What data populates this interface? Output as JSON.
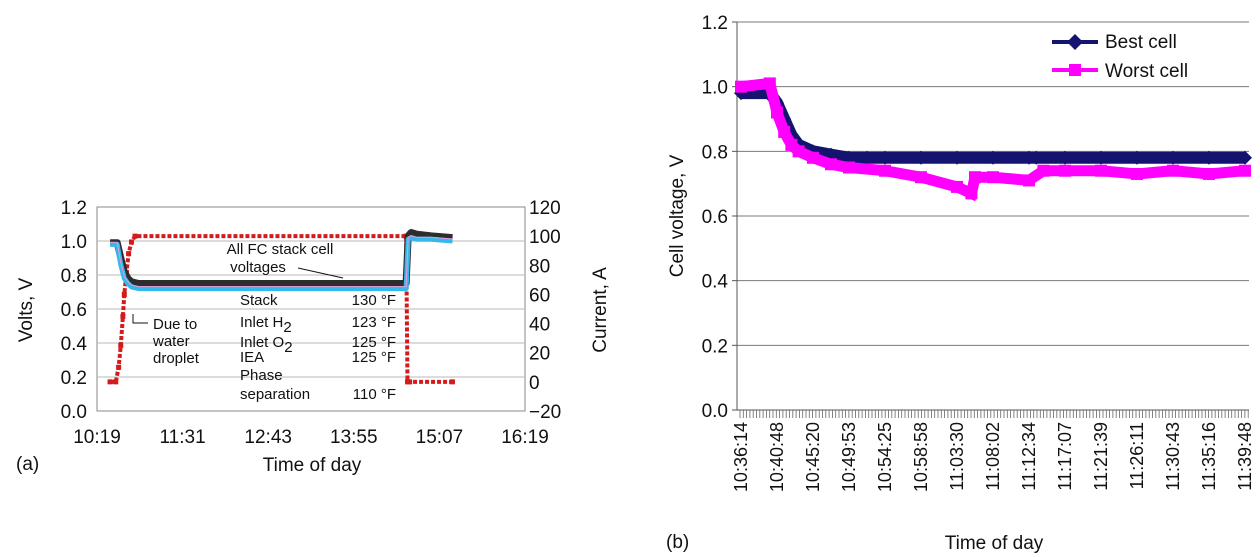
{
  "chart_data": [
    {
      "panel_label": "(a)",
      "type": "line",
      "xlabel": "Time of day",
      "ylabel": "Volts, V",
      "y2label": "Current, A",
      "xlim": [
        10.317,
        16.317
      ],
      "ylim": [
        0.0,
        1.2
      ],
      "y2lim": [
        -20,
        120
      ],
      "x_ticks": [
        "10:19",
        "11:31",
        "12:43",
        "13:55",
        "15:07",
        "16:19"
      ],
      "y_ticks": [
        "0.0",
        "0.2",
        "0.4",
        "0.6",
        "0.8",
        "1.0",
        "1.2"
      ],
      "y2_ticks": [
        "−20",
        "0",
        "20",
        "40",
        "60",
        "80",
        "100",
        "120"
      ],
      "grid": "horizontal",
      "series": [
        {
          "role": "current",
          "axis": "right",
          "color": "#d41b1b",
          "x": [
            10.5,
            10.58,
            10.62,
            10.65,
            10.68,
            10.7,
            10.73,
            10.76,
            10.8,
            10.85,
            14.65,
            14.67,
            14.7,
            15.3
          ],
          "values": [
            0,
            0,
            10,
            25,
            45,
            60,
            75,
            88,
            96,
            100,
            100,
            0,
            0,
            0
          ]
        },
        {
          "role": "cell voltages",
          "axis": "left",
          "color": "#2d2d2d",
          "x": [
            10.5,
            10.6,
            10.65,
            10.7,
            10.75,
            10.8,
            10.9,
            11.0,
            11.2,
            11.5,
            12.5,
            13.5,
            14.2,
            14.65,
            14.68,
            14.72,
            14.8,
            15.0,
            15.3
          ],
          "values": [
            0.99,
            0.99,
            0.9,
            0.82,
            0.78,
            0.76,
            0.75,
            0.75,
            0.75,
            0.75,
            0.75,
            0.75,
            0.75,
            0.75,
            1.03,
            1.05,
            1.04,
            1.03,
            1.02
          ]
        },
        {
          "role": "cell voltages",
          "axis": "left",
          "color": "#35b8ec",
          "x": [
            10.5,
            10.6,
            10.65,
            10.7,
            10.75,
            10.8,
            10.9,
            11.0,
            11.2,
            11.5,
            12.5,
            13.5,
            14.2,
            14.65,
            14.68,
            14.72,
            14.8,
            15.0,
            15.3
          ],
          "values": [
            0.98,
            0.98,
            0.86,
            0.78,
            0.75,
            0.73,
            0.72,
            0.72,
            0.72,
            0.72,
            0.72,
            0.72,
            0.72,
            0.72,
            1.01,
            1.02,
            1.01,
            1.01,
            1.0
          ]
        }
      ],
      "annotations": {
        "cell_voltages": [
          "All FC stack cell",
          "voltages"
        ],
        "water_droplet": [
          "Due to",
          "water",
          "droplet"
        ],
        "temperatures": [
          {
            "label": "Stack",
            "value": "130 °F"
          },
          {
            "label": "Inlet H",
            "sub": "2",
            "value": "123 °F"
          },
          {
            "label": "Inlet O",
            "sub": "2",
            "value": "125 °F"
          },
          {
            "label": "IEA",
            "value": "125 °F"
          },
          {
            "label": "Phase",
            "value": ""
          },
          {
            "label": "separation",
            "value": "110 °F"
          }
        ]
      }
    },
    {
      "panel_label": "(b)",
      "type": "line",
      "xlabel": "Time of day",
      "ylabel": "Cell voltage, V",
      "ylim": [
        0.0,
        1.2
      ],
      "y_ticks": [
        "0.0",
        "0.2",
        "0.4",
        "0.6",
        "0.8",
        "1.0",
        "1.2"
      ],
      "x_ticks": [
        "10:36:14",
        "10:40:48",
        "10:45:20",
        "10:49:53",
        "10:54:25",
        "10:58:58",
        "11:03:30",
        "11:08:02",
        "11:12:34",
        "11:17:07",
        "11:21:39",
        "11:26:11",
        "11:30:43",
        "11:35:16",
        "11:39:48"
      ],
      "grid": "horizontal",
      "legend_position": "top-right",
      "series": [
        {
          "name": "Best cell",
          "color": "#141470",
          "marker": "diamond",
          "x": [
            0,
            0.8,
            1.0,
            1.2,
            1.4,
            1.6,
            2.0,
            2.5,
            3.0,
            3.5,
            4.0,
            5.0,
            6.0,
            7.0,
            8.0,
            8.2,
            9.0,
            10.0,
            11.0,
            12.0,
            13.0,
            14.0
          ],
          "values": [
            0.98,
            0.98,
            0.95,
            0.9,
            0.85,
            0.82,
            0.8,
            0.79,
            0.78,
            0.78,
            0.78,
            0.78,
            0.78,
            0.78,
            0.78,
            0.78,
            0.78,
            0.78,
            0.78,
            0.78,
            0.78,
            0.78
          ]
        },
        {
          "name": "Worst cell",
          "color": "#ff00ff",
          "marker": "square",
          "x": [
            0,
            0.8,
            1.0,
            1.2,
            1.4,
            1.6,
            2.0,
            2.5,
            3.0,
            4.0,
            5.0,
            6.0,
            6.4,
            6.5,
            7.0,
            8.0,
            8.4,
            9.0,
            10.0,
            11.0,
            12.0,
            13.0,
            14.0
          ],
          "values": [
            1.0,
            1.01,
            0.92,
            0.86,
            0.82,
            0.8,
            0.78,
            0.76,
            0.75,
            0.74,
            0.72,
            0.69,
            0.67,
            0.72,
            0.72,
            0.71,
            0.74,
            0.74,
            0.74,
            0.73,
            0.74,
            0.73,
            0.74
          ]
        }
      ]
    }
  ]
}
